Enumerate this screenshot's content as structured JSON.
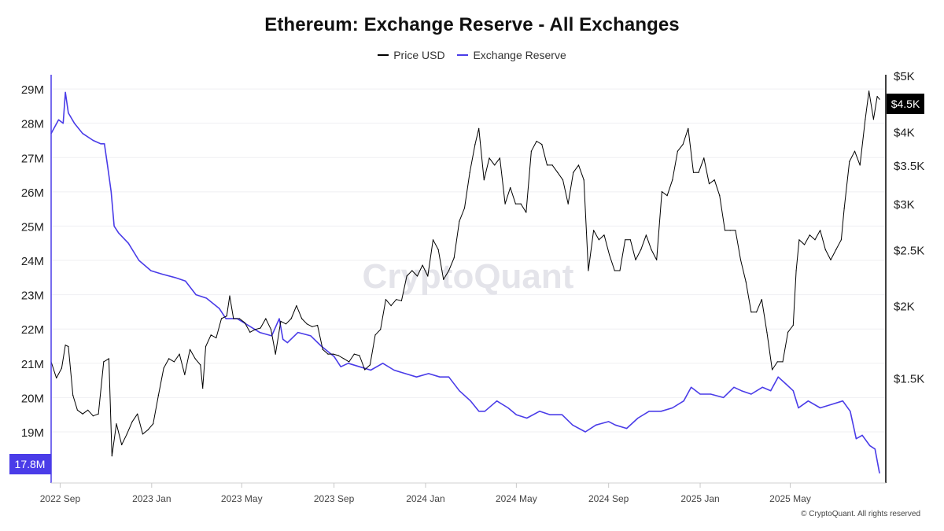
{
  "chart_data": {
    "type": "line",
    "title": "Ethereum: Exchange Reserve - All Exchanges",
    "legend_position": "top-center",
    "grid": true,
    "x_ticks": [
      "2022 Sep",
      "2023 Jan",
      "2023 May",
      "2023 Sep",
      "2024 Jan",
      "2024 May",
      "2024 Sep",
      "2025 Jan",
      "2025 May"
    ],
    "y_left": {
      "ticks": [
        "19M",
        "20M",
        "21M",
        "22M",
        "23M",
        "24M",
        "25M",
        "26M",
        "27M",
        "28M",
        "29M"
      ],
      "range": [
        17.6,
        29.3
      ],
      "current_label": "17.8M"
    },
    "y_right": {
      "ticks": [
        "$1.5K",
        "$2K",
        "$2.5K",
        "$3K",
        "$3.5K",
        "$4K",
        "$5K"
      ],
      "scale": "log",
      "range": [
        1000,
        5000
      ],
      "current_label": "$4.5K"
    },
    "watermark": "CryptoQuant",
    "series": [
      {
        "name": "Price USD",
        "axis": "right",
        "color": "#000000",
        "points": [
          [
            "2022-08-20",
            1600
          ],
          [
            "2022-08-27",
            1500
          ],
          [
            "2022-09-03",
            1560
          ],
          [
            "2022-09-08",
            1710
          ],
          [
            "2022-09-12",
            1700
          ],
          [
            "2022-09-18",
            1400
          ],
          [
            "2022-09-24",
            1320
          ],
          [
            "2022-10-01",
            1300
          ],
          [
            "2022-10-08",
            1320
          ],
          [
            "2022-10-15",
            1290
          ],
          [
            "2022-10-22",
            1300
          ],
          [
            "2022-10-29",
            1600
          ],
          [
            "2022-11-05",
            1620
          ],
          [
            "2022-11-09",
            1100
          ],
          [
            "2022-11-15",
            1250
          ],
          [
            "2022-11-22",
            1150
          ],
          [
            "2022-11-29",
            1200
          ],
          [
            "2022-12-06",
            1260
          ],
          [
            "2022-12-13",
            1300
          ],
          [
            "2022-12-20",
            1200
          ],
          [
            "2022-12-27",
            1220
          ],
          [
            "2023-01-03",
            1250
          ],
          [
            "2023-01-10",
            1400
          ],
          [
            "2023-01-17",
            1560
          ],
          [
            "2023-01-24",
            1620
          ],
          [
            "2023-01-31",
            1600
          ],
          [
            "2023-02-07",
            1650
          ],
          [
            "2023-02-14",
            1520
          ],
          [
            "2023-02-21",
            1680
          ],
          [
            "2023-02-28",
            1620
          ],
          [
            "2023-03-07",
            1580
          ],
          [
            "2023-03-10",
            1440
          ],
          [
            "2023-03-14",
            1700
          ],
          [
            "2023-03-21",
            1780
          ],
          [
            "2023-03-28",
            1760
          ],
          [
            "2023-04-04",
            1900
          ],
          [
            "2023-04-11",
            1920
          ],
          [
            "2023-04-15",
            2080
          ],
          [
            "2023-04-20",
            1900
          ],
          [
            "2023-04-28",
            1900
          ],
          [
            "2023-05-05",
            1870
          ],
          [
            "2023-05-12",
            1800
          ],
          [
            "2023-05-19",
            1820
          ],
          [
            "2023-05-26",
            1830
          ],
          [
            "2023-06-02",
            1900
          ],
          [
            "2023-06-09",
            1820
          ],
          [
            "2023-06-15",
            1650
          ],
          [
            "2023-06-22",
            1880
          ],
          [
            "2023-06-29",
            1860
          ],
          [
            "2023-07-06",
            1900
          ],
          [
            "2023-07-13",
            2000
          ],
          [
            "2023-07-20",
            1900
          ],
          [
            "2023-07-27",
            1860
          ],
          [
            "2023-08-03",
            1840
          ],
          [
            "2023-08-10",
            1850
          ],
          [
            "2023-08-17",
            1680
          ],
          [
            "2023-08-24",
            1650
          ],
          [
            "2023-08-31",
            1650
          ],
          [
            "2023-09-07",
            1640
          ],
          [
            "2023-09-14",
            1620
          ],
          [
            "2023-09-21",
            1600
          ],
          [
            "2023-09-28",
            1650
          ],
          [
            "2023-10-05",
            1640
          ],
          [
            "2023-10-12",
            1550
          ],
          [
            "2023-10-19",
            1580
          ],
          [
            "2023-10-26",
            1780
          ],
          [
            "2023-11-02",
            1820
          ],
          [
            "2023-11-09",
            2050
          ],
          [
            "2023-11-16",
            2000
          ],
          [
            "2023-11-23",
            2050
          ],
          [
            "2023-11-30",
            2040
          ],
          [
            "2023-12-07",
            2250
          ],
          [
            "2023-12-14",
            2300
          ],
          [
            "2023-12-21",
            2250
          ],
          [
            "2023-12-28",
            2350
          ],
          [
            "2024-01-04",
            2250
          ],
          [
            "2024-01-11",
            2600
          ],
          [
            "2024-01-18",
            2500
          ],
          [
            "2024-01-25",
            2220
          ],
          [
            "2024-02-01",
            2300
          ],
          [
            "2024-02-08",
            2420
          ],
          [
            "2024-02-15",
            2800
          ],
          [
            "2024-02-22",
            2950
          ],
          [
            "2024-02-29",
            3400
          ],
          [
            "2024-03-07",
            3800
          ],
          [
            "2024-03-12",
            4050
          ],
          [
            "2024-03-19",
            3300
          ],
          [
            "2024-03-26",
            3600
          ],
          [
            "2024-04-02",
            3500
          ],
          [
            "2024-04-09",
            3600
          ],
          [
            "2024-04-16",
            3000
          ],
          [
            "2024-04-23",
            3200
          ],
          [
            "2024-04-30",
            3000
          ],
          [
            "2024-05-07",
            3000
          ],
          [
            "2024-05-14",
            2900
          ],
          [
            "2024-05-21",
            3700
          ],
          [
            "2024-05-28",
            3850
          ],
          [
            "2024-06-04",
            3800
          ],
          [
            "2024-06-11",
            3500
          ],
          [
            "2024-06-18",
            3500
          ],
          [
            "2024-06-25",
            3400
          ],
          [
            "2024-07-02",
            3300
          ],
          [
            "2024-07-09",
            3000
          ],
          [
            "2024-07-16",
            3400
          ],
          [
            "2024-07-23",
            3500
          ],
          [
            "2024-07-30",
            3300
          ],
          [
            "2024-08-05",
            2300
          ],
          [
            "2024-08-12",
            2700
          ],
          [
            "2024-08-19",
            2600
          ],
          [
            "2024-08-26",
            2650
          ],
          [
            "2024-09-02",
            2450
          ],
          [
            "2024-09-09",
            2300
          ],
          [
            "2024-09-16",
            2300
          ],
          [
            "2024-09-23",
            2600
          ],
          [
            "2024-09-30",
            2600
          ],
          [
            "2024-10-07",
            2400
          ],
          [
            "2024-10-14",
            2500
          ],
          [
            "2024-10-21",
            2650
          ],
          [
            "2024-10-28",
            2500
          ],
          [
            "2024-11-04",
            2400
          ],
          [
            "2024-11-11",
            3150
          ],
          [
            "2024-11-18",
            3100
          ],
          [
            "2024-11-25",
            3300
          ],
          [
            "2024-12-02",
            3700
          ],
          [
            "2024-12-09",
            3800
          ],
          [
            "2024-12-16",
            4050
          ],
          [
            "2024-12-23",
            3400
          ],
          [
            "2024-12-30",
            3400
          ],
          [
            "2025-01-06",
            3600
          ],
          [
            "2025-01-13",
            3250
          ],
          [
            "2025-01-20",
            3300
          ],
          [
            "2025-01-27",
            3100
          ],
          [
            "2025-02-03",
            2700
          ],
          [
            "2025-02-10",
            2700
          ],
          [
            "2025-02-17",
            2700
          ],
          [
            "2025-02-24",
            2400
          ],
          [
            "2025-03-03",
            2200
          ],
          [
            "2025-03-10",
            1950
          ],
          [
            "2025-03-17",
            1950
          ],
          [
            "2025-03-24",
            2050
          ],
          [
            "2025-03-31",
            1800
          ],
          [
            "2025-04-07",
            1550
          ],
          [
            "2025-04-14",
            1600
          ],
          [
            "2025-04-21",
            1600
          ],
          [
            "2025-04-28",
            1800
          ],
          [
            "2025-05-05",
            1850
          ],
          [
            "2025-05-09",
            2300
          ],
          [
            "2025-05-13",
            2600
          ],
          [
            "2025-05-20",
            2550
          ],
          [
            "2025-05-27",
            2650
          ],
          [
            "2025-06-03",
            2600
          ],
          [
            "2025-06-10",
            2700
          ],
          [
            "2025-06-17",
            2500
          ],
          [
            "2025-06-24",
            2400
          ],
          [
            "2025-07-01",
            2500
          ],
          [
            "2025-07-08",
            2600
          ],
          [
            "2025-07-12",
            2950
          ],
          [
            "2025-07-19",
            3550
          ],
          [
            "2025-07-26",
            3700
          ],
          [
            "2025-08-02",
            3500
          ],
          [
            "2025-08-09",
            4200
          ],
          [
            "2025-08-14",
            4700
          ],
          [
            "2025-08-20",
            4200
          ],
          [
            "2025-08-25",
            4600
          ],
          [
            "2025-08-28",
            4550
          ]
        ]
      },
      {
        "name": "Exchange Reserve",
        "axis": "left",
        "color": "#4a3ce8",
        "points": [
          [
            "2022-08-20",
            27.7
          ],
          [
            "2022-08-30",
            28.1
          ],
          [
            "2022-09-05",
            28.0
          ],
          [
            "2022-09-08",
            28.9
          ],
          [
            "2022-09-12",
            28.3
          ],
          [
            "2022-09-20",
            28.0
          ],
          [
            "2022-10-01",
            27.7
          ],
          [
            "2022-10-15",
            27.5
          ],
          [
            "2022-10-25",
            27.4
          ],
          [
            "2022-10-30",
            27.4
          ],
          [
            "2022-11-03",
            26.8
          ],
          [
            "2022-11-08",
            26.0
          ],
          [
            "2022-11-12",
            25.0
          ],
          [
            "2022-11-18",
            24.8
          ],
          [
            "2022-12-01",
            24.5
          ],
          [
            "2022-12-15",
            24.0
          ],
          [
            "2022-12-31",
            23.7
          ],
          [
            "2023-01-15",
            23.6
          ],
          [
            "2023-02-01",
            23.5
          ],
          [
            "2023-02-15",
            23.4
          ],
          [
            "2023-03-01",
            23.0
          ],
          [
            "2023-03-15",
            22.9
          ],
          [
            "2023-04-01",
            22.6
          ],
          [
            "2023-04-10",
            22.3
          ],
          [
            "2023-04-25",
            22.3
          ],
          [
            "2023-05-10",
            22.1
          ],
          [
            "2023-05-25",
            21.9
          ],
          [
            "2023-06-10",
            21.8
          ],
          [
            "2023-06-20",
            22.3
          ],
          [
            "2023-06-25",
            21.7
          ],
          [
            "2023-07-01",
            21.6
          ],
          [
            "2023-07-15",
            21.9
          ],
          [
            "2023-08-01",
            21.8
          ],
          [
            "2023-08-15",
            21.5
          ],
          [
            "2023-09-01",
            21.2
          ],
          [
            "2023-09-10",
            20.9
          ],
          [
            "2023-09-20",
            21.0
          ],
          [
            "2023-10-05",
            20.9
          ],
          [
            "2023-10-20",
            20.8
          ],
          [
            "2023-11-05",
            21.0
          ],
          [
            "2023-11-20",
            20.8
          ],
          [
            "2023-12-05",
            20.7
          ],
          [
            "2023-12-20",
            20.6
          ],
          [
            "2024-01-05",
            20.7
          ],
          [
            "2024-01-20",
            20.6
          ],
          [
            "2024-02-01",
            20.6
          ],
          [
            "2024-02-15",
            20.2
          ],
          [
            "2024-03-01",
            19.9
          ],
          [
            "2024-03-12",
            19.6
          ],
          [
            "2024-03-20",
            19.6
          ],
          [
            "2024-04-05",
            19.9
          ],
          [
            "2024-04-20",
            19.7
          ],
          [
            "2024-05-01",
            19.5
          ],
          [
            "2024-05-15",
            19.4
          ],
          [
            "2024-06-01",
            19.6
          ],
          [
            "2024-06-15",
            19.5
          ],
          [
            "2024-07-01",
            19.5
          ],
          [
            "2024-07-15",
            19.2
          ],
          [
            "2024-08-01",
            19.0
          ],
          [
            "2024-08-15",
            19.2
          ],
          [
            "2024-09-01",
            19.3
          ],
          [
            "2024-09-10",
            19.2
          ],
          [
            "2024-09-25",
            19.1
          ],
          [
            "2024-10-10",
            19.4
          ],
          [
            "2024-10-25",
            19.6
          ],
          [
            "2024-11-10",
            19.6
          ],
          [
            "2024-11-25",
            19.7
          ],
          [
            "2024-12-10",
            19.9
          ],
          [
            "2024-12-20",
            20.3
          ],
          [
            "2025-01-01",
            20.1
          ],
          [
            "2025-01-15",
            20.1
          ],
          [
            "2025-02-01",
            20.0
          ],
          [
            "2025-02-15",
            20.3
          ],
          [
            "2025-02-25",
            20.2
          ],
          [
            "2025-03-10",
            20.1
          ],
          [
            "2025-03-25",
            20.3
          ],
          [
            "2025-04-05",
            20.2
          ],
          [
            "2025-04-15",
            20.6
          ],
          [
            "2025-04-25",
            20.4
          ],
          [
            "2025-05-05",
            20.2
          ],
          [
            "2025-05-12",
            19.7
          ],
          [
            "2025-05-25",
            19.9
          ],
          [
            "2025-06-10",
            19.7
          ],
          [
            "2025-06-25",
            19.8
          ],
          [
            "2025-07-10",
            19.9
          ],
          [
            "2025-07-20",
            19.6
          ],
          [
            "2025-07-28",
            18.8
          ],
          [
            "2025-08-05",
            18.9
          ],
          [
            "2025-08-15",
            18.6
          ],
          [
            "2025-08-22",
            18.5
          ],
          [
            "2025-08-28",
            17.8
          ]
        ]
      }
    ]
  },
  "copyright": "© CryptoQuant. All rights reserved"
}
